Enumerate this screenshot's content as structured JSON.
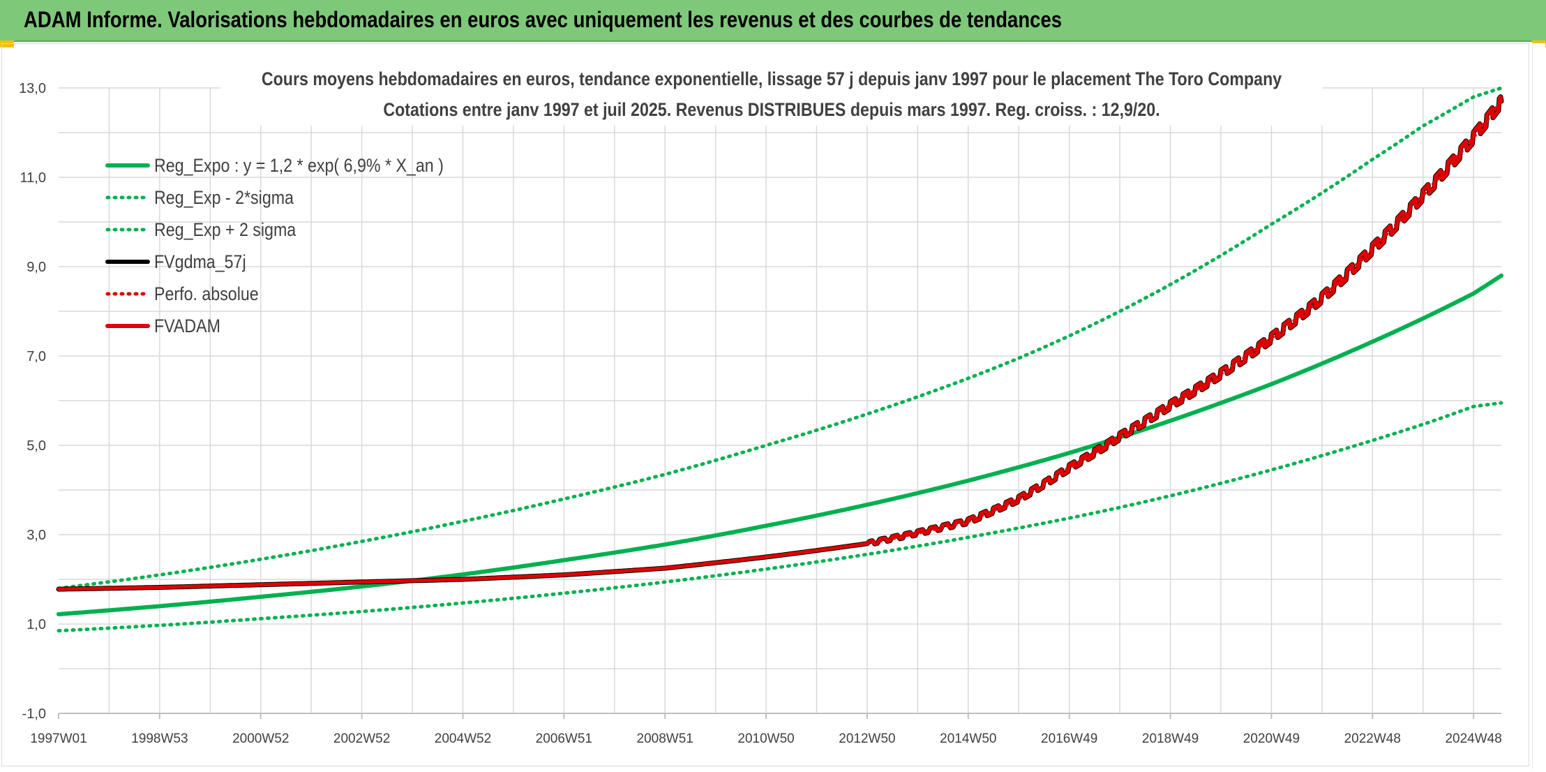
{
  "page": {
    "header_title": "ADAM Informe. Valorisations hebdomadaires en euros avec uniquement les revenus et des courbes de tendances",
    "header_color": "#7ec87a"
  },
  "chart_data": {
    "type": "line",
    "title": "Cours moyens hebdomadaires en euros, tendance exponentielle, lissage 57 j depuis janv 1997 pour le placement The Toro Company",
    "subtitle": "Cotations entre janv 1997 et juil 2025. Revenus DISTRIBUES depuis mars 1997. Reg. croiss. : 12,9/20.",
    "xlabel": "",
    "ylabel": "",
    "x_tick_labels": [
      "1997W01",
      "1998W53",
      "2000W52",
      "2002W52",
      "2004W52",
      "2006W51",
      "2008W51",
      "2010W50",
      "2012W50",
      "2014W50",
      "2016W49",
      "2018W49",
      "2020W49",
      "2022W48",
      "2024W48"
    ],
    "x_range": [
      1997.0,
      2025.55
    ],
    "y_tick_labels": [
      "-1,0",
      "1,0",
      "3,0",
      "5,0",
      "7,0",
      "9,0",
      "11,0",
      "13,0"
    ],
    "ylim": [
      -1,
      13
    ],
    "grid": true,
    "legend_position": "top-left",
    "x": [
      1997.0,
      1999.0,
      2001.0,
      2003.0,
      2005.0,
      2007.0,
      2009.0,
      2011.0,
      2013.0,
      2015.0,
      2016.0,
      2017.0,
      2018.0,
      2019.0,
      2020.0,
      2021.0,
      2022.0,
      2023.0,
      2024.0,
      2025.0,
      2025.55
    ],
    "series": [
      {
        "name": "Reg_Expo : y = 1,2 * exp( 6,9% *  X_an )",
        "color": "#00b050",
        "style": "solid",
        "values": [
          1.22,
          1.4,
          1.61,
          1.84,
          2.11,
          2.43,
          2.78,
          3.2,
          3.67,
          4.21,
          4.51,
          4.83,
          5.18,
          5.55,
          5.95,
          6.37,
          6.83,
          7.32,
          7.84,
          8.4,
          8.8
        ]
      },
      {
        "name": "Reg_Exp - 2*sigma",
        "color": "#00b050",
        "style": "dotted",
        "values": [
          0.85,
          0.97,
          1.12,
          1.28,
          1.47,
          1.69,
          1.94,
          2.23,
          2.56,
          2.94,
          3.15,
          3.37,
          3.61,
          3.87,
          4.15,
          4.45,
          4.77,
          5.11,
          5.47,
          5.87,
          5.95
        ]
      },
      {
        "name": "Reg_Exp + 2 sigma",
        "color": "#00b050",
        "style": "dotted",
        "values": [
          1.8,
          2.1,
          2.45,
          2.85,
          3.3,
          3.8,
          4.35,
          5.0,
          5.7,
          6.5,
          6.95,
          7.45,
          8.0,
          8.6,
          9.25,
          9.95,
          10.65,
          11.4,
          12.15,
          12.8,
          13.0
        ]
      },
      {
        "name": "FVgdma_57j",
        "color": "#000000",
        "style": "solid",
        "values": [
          1.78,
          1.82,
          1.88,
          1.94,
          2.0,
          2.1,
          2.25,
          2.5,
          2.8,
          3.3,
          3.8,
          4.5,
          5.2,
          5.9,
          6.6,
          7.4,
          8.3,
          9.4,
          10.6,
          11.9,
          12.7
        ]
      },
      {
        "name": "Perfo. absolue",
        "color": "#e00000",
        "style": "dotted",
        "values": [
          1.78,
          1.82,
          1.88,
          1.94,
          2.0,
          2.1,
          2.25,
          2.5,
          2.8,
          3.3,
          3.8,
          4.5,
          5.2,
          5.9,
          6.6,
          7.4,
          8.3,
          9.4,
          10.6,
          11.9,
          12.7
        ]
      },
      {
        "name": "FVADAM",
        "color": "#e00000",
        "style": "solid",
        "values": [
          1.78,
          1.82,
          1.88,
          1.94,
          2.0,
          2.1,
          2.25,
          2.5,
          2.8,
          3.3,
          3.8,
          4.5,
          5.2,
          5.9,
          6.6,
          7.4,
          8.3,
          9.4,
          10.6,
          11.9,
          12.7
        ]
      }
    ]
  }
}
